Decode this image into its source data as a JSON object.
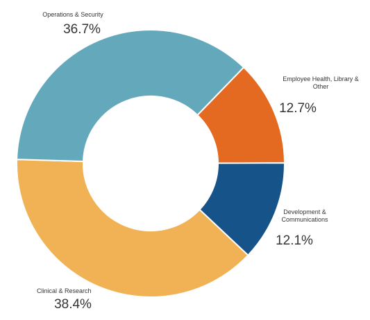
{
  "chart_data": {
    "type": "pie",
    "variant": "donut",
    "start_angle_deg": -46,
    "direction": "clockwise",
    "slices": [
      {
        "label": [
          "Employee Health, Library &",
          "Other"
        ],
        "value": 12.7,
        "display": "12.7%",
        "color": "#E46A22"
      },
      {
        "label": [
          "Development &",
          "Communications"
        ],
        "value": 12.1,
        "display": "12.1%",
        "color": "#155389"
      },
      {
        "label": [
          "Clinical & Research"
        ],
        "value": 38.4,
        "display": "38.4%",
        "color": "#F0B254"
      },
      {
        "label": [
          "Operations & Security"
        ],
        "value": 36.7,
        "display": "36.7%",
        "color": "#64A9BB"
      }
    ]
  }
}
